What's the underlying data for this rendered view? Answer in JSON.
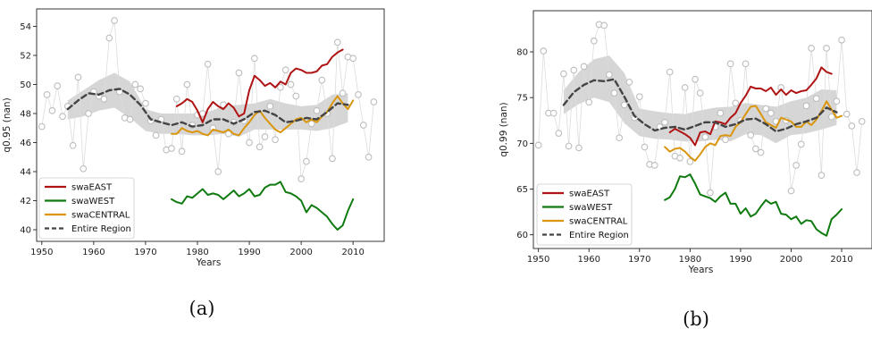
{
  "captions": [
    "(a)",
    "(b)"
  ],
  "chart_data": [
    {
      "type": "line",
      "xlabel": "Years",
      "ylabel": "q0.95 (nan)",
      "xlim": [
        1949,
        2016
      ],
      "ylim": [
        39.2,
        55.2
      ],
      "xticks": [
        1950,
        1960,
        1970,
        1980,
        1990,
        2000,
        2010
      ],
      "yticks": [
        40,
        42,
        44,
        46,
        48,
        50,
        52,
        54
      ],
      "grid": false,
      "legend_position": "lower-left",
      "series": [
        {
          "name": "swaEAST",
          "color": "#b01313",
          "style": "solid",
          "x": [
            1976,
            1977,
            1978,
            1979,
            1980,
            1981,
            1982,
            1983,
            1984,
            1985,
            1986,
            1987,
            1988,
            1989,
            1990,
            1991,
            1992,
            1993,
            1994,
            1995,
            1996,
            1997,
            1998,
            1999,
            2000,
            2001,
            2002,
            2003,
            2004,
            2005,
            2006,
            2007,
            2008
          ],
          "y": [
            48.5,
            48.7,
            49.0,
            48.8,
            48.2,
            47.4,
            48.3,
            48.8,
            48.5,
            48.3,
            48.7,
            48.4,
            47.8,
            48.0,
            49.6,
            50.6,
            50.3,
            49.9,
            50.1,
            49.8,
            50.2,
            50.0,
            50.8,
            51.1,
            51.0,
            50.8,
            50.8,
            50.9,
            51.3,
            51.4,
            51.9,
            52.2,
            52.4
          ]
        },
        {
          "name": "swaWEST",
          "color": "#0f7a0f",
          "style": "solid",
          "x": [
            1975,
            1976,
            1977,
            1978,
            1979,
            1980,
            1981,
            1982,
            1983,
            1984,
            1985,
            1986,
            1987,
            1988,
            1989,
            1990,
            1991,
            1992,
            1993,
            1994,
            1995,
            1996,
            1997,
            1998,
            1999,
            2000,
            2001,
            2002,
            2003,
            2004,
            2005,
            2006,
            2007,
            2008,
            2009,
            2010
          ],
          "y": [
            42.1,
            41.9,
            41.8,
            42.3,
            42.2,
            42.5,
            42.8,
            42.4,
            42.5,
            42.4,
            42.1,
            42.4,
            42.7,
            42.3,
            42.5,
            42.8,
            42.3,
            42.4,
            42.9,
            43.1,
            43.1,
            43.3,
            42.6,
            42.5,
            42.3,
            42.0,
            41.2,
            41.7,
            41.5,
            41.2,
            40.9,
            40.4,
            40.0,
            40.3,
            41.3,
            42.1
          ]
        },
        {
          "name": "swaCENTRAL",
          "color": "#d9960e",
          "style": "solid",
          "x": [
            1975,
            1976,
            1977,
            1978,
            1979,
            1980,
            1981,
            1982,
            1983,
            1984,
            1985,
            1986,
            1987,
            1988,
            1989,
            1990,
            1991,
            1992,
            1993,
            1994,
            1995,
            1996,
            1997,
            1998,
            1999,
            2000,
            2001,
            2002,
            2003,
            2004,
            2005,
            2006,
            2007,
            2008,
            2009,
            2010
          ],
          "y": [
            46.6,
            46.6,
            47.0,
            46.8,
            46.7,
            46.8,
            46.6,
            46.5,
            46.9,
            46.8,
            46.7,
            46.9,
            46.6,
            46.5,
            47.0,
            47.4,
            47.9,
            48.2,
            47.7,
            47.3,
            46.9,
            46.7,
            47.0,
            47.3,
            47.6,
            47.7,
            47.4,
            47.6,
            47.4,
            47.8,
            48.1,
            48.7,
            49.2,
            48.7,
            48.3,
            48.9
          ]
        },
        {
          "name": "Entire Region",
          "color": "#444444",
          "style": "dashed",
          "x": [
            1955,
            1957,
            1959,
            1961,
            1963,
            1965,
            1967,
            1969,
            1971,
            1973,
            1975,
            1977,
            1979,
            1981,
            1983,
            1985,
            1987,
            1989,
            1991,
            1993,
            1995,
            1997,
            1999,
            2001,
            2003,
            2005,
            2007,
            2009
          ],
          "y": [
            48.3,
            48.9,
            49.4,
            49.3,
            49.6,
            49.7,
            49.3,
            48.6,
            47.6,
            47.4,
            47.2,
            47.4,
            47.1,
            47.2,
            47.6,
            47.6,
            47.3,
            47.6,
            48.1,
            48.2,
            47.9,
            47.4,
            47.5,
            47.7,
            47.6,
            48.1,
            48.7,
            48.6
          ]
        }
      ],
      "uncertainty_band": {
        "color": "#cfcfcf",
        "x": [
          1955,
          1958,
          1961,
          1964,
          1967,
          1970,
          1973,
          1976,
          1979,
          1982,
          1985,
          1988,
          1991,
          1994,
          1997,
          2000,
          2003,
          2006,
          2009
        ],
        "lower": [
          47.6,
          47.8,
          48.2,
          48.4,
          47.7,
          46.8,
          46.6,
          46.6,
          46.5,
          46.5,
          46.6,
          46.4,
          46.9,
          46.9,
          46.9,
          46.9,
          46.8,
          47.0,
          47.4
        ],
        "upper": [
          48.9,
          49.6,
          50.3,
          50.8,
          50.2,
          48.3,
          48.0,
          48.0,
          48.0,
          48.1,
          48.5,
          48.6,
          48.7,
          49.0,
          48.7,
          48.5,
          48.6,
          49.3,
          49.4
        ]
      },
      "observations": {
        "color": "#bdbdbd",
        "x": [
          1950,
          1951,
          1952,
          1953,
          1954,
          1955,
          1956,
          1957,
          1958,
          1959,
          1960,
          1961,
          1962,
          1963,
          1964,
          1965,
          1966,
          1967,
          1968,
          1969,
          1970,
          1971,
          1972,
          1973,
          1974,
          1975,
          1976,
          1977,
          1978,
          1979,
          1980,
          1981,
          1982,
          1983,
          1984,
          1985,
          1986,
          1987,
          1988,
          1989,
          1990,
          1991,
          1992,
          1993,
          1994,
          1995,
          1996,
          1997,
          1998,
          1999,
          2000,
          2001,
          2002,
          2003,
          2004,
          2005,
          2006,
          2007,
          2008,
          2009,
          2010,
          2011,
          2012,
          2013,
          2014
        ],
        "y": [
          47.1,
          49.3,
          48.2,
          49.9,
          47.8,
          48.5,
          45.8,
          50.5,
          44.2,
          48.0,
          49.5,
          49.2,
          49.0,
          53.2,
          54.4,
          49.5,
          47.7,
          47.6,
          50.0,
          49.7,
          48.7,
          47.5,
          46.5,
          47.6,
          45.5,
          45.6,
          49.0,
          45.4,
          50.0,
          47.2,
          47.9,
          48.0,
          51.4,
          47.0,
          44.0,
          48.6,
          46.6,
          47.4,
          50.8,
          47.5,
          46.0,
          51.8,
          45.7,
          46.4,
          48.5,
          46.2,
          49.8,
          51.0,
          50.0,
          49.2,
          43.5,
          44.7,
          47.3,
          48.2,
          50.3,
          48.0,
          44.9,
          52.9,
          49.4,
          51.9,
          51.8,
          49.3,
          47.2,
          45.0,
          48.8
        ]
      }
    },
    {
      "type": "line",
      "xlabel": "Years",
      "ylabel": "q0.99 (nan)",
      "xlim": [
        1949,
        2016
      ],
      "ylim": [
        58.5,
        84.5
      ],
      "xticks": [
        1950,
        1960,
        1970,
        1980,
        1990,
        2000,
        2010
      ],
      "yticks": [
        60,
        65,
        70,
        75,
        80
      ],
      "grid": false,
      "legend_position": "lower-left",
      "series": [
        {
          "name": "swaEAST",
          "color": "#b01313",
          "style": "solid",
          "x": [
            1976,
            1977,
            1978,
            1979,
            1980,
            1981,
            1982,
            1983,
            1984,
            1985,
            1986,
            1987,
            1988,
            1989,
            1990,
            1991,
            1992,
            1993,
            1994,
            1995,
            1996,
            1997,
            1998,
            1999,
            2000,
            2001,
            2002,
            2003,
            2004,
            2005,
            2006,
            2007,
            2008
          ],
          "y": [
            71.2,
            71.6,
            71.3,
            71.0,
            70.6,
            69.8,
            71.2,
            71.3,
            71.0,
            72.4,
            72.3,
            72.1,
            72.8,
            73.3,
            74.4,
            75.2,
            76.2,
            76.0,
            76.0,
            75.7,
            76.1,
            75.3,
            75.9,
            75.3,
            75.8,
            75.5,
            75.7,
            75.8,
            76.4,
            77.1,
            78.3,
            77.8,
            77.6
          ]
        },
        {
          "name": "swaWEST",
          "color": "#0f7a0f",
          "style": "solid",
          "x": [
            1975,
            1976,
            1977,
            1978,
            1979,
            1980,
            1981,
            1982,
            1983,
            1984,
            1985,
            1986,
            1987,
            1988,
            1989,
            1990,
            1991,
            1992,
            1993,
            1994,
            1995,
            1996,
            1997,
            1998,
            1999,
            2000,
            2001,
            2002,
            2003,
            2004,
            2005,
            2006,
            2007,
            2008,
            2009,
            2010
          ],
          "y": [
            63.8,
            64.1,
            65.0,
            66.4,
            66.3,
            66.6,
            65.6,
            64.4,
            64.2,
            64.0,
            63.6,
            64.2,
            64.6,
            63.4,
            63.4,
            62.3,
            62.9,
            62.0,
            62.3,
            63.1,
            63.8,
            63.4,
            63.6,
            62.3,
            62.2,
            61.7,
            62.0,
            61.2,
            61.6,
            61.5,
            60.6,
            60.2,
            59.9,
            61.7,
            62.2,
            62.8
          ]
        },
        {
          "name": "swaCENTRAL",
          "color": "#d9960e",
          "style": "solid",
          "x": [
            1975,
            1976,
            1977,
            1978,
            1979,
            1980,
            1981,
            1982,
            1983,
            1984,
            1985,
            1986,
            1987,
            1988,
            1989,
            1990,
            1991,
            1992,
            1993,
            1994,
            1995,
            1996,
            1997,
            1998,
            1999,
            2000,
            2001,
            2002,
            2003,
            2004,
            2005,
            2006,
            2007,
            2008,
            2009,
            2010
          ],
          "y": [
            69.6,
            69.1,
            69.4,
            69.5,
            69.1,
            68.5,
            68.1,
            68.8,
            69.6,
            70.0,
            69.8,
            70.8,
            70.9,
            70.8,
            71.8,
            72.3,
            73.2,
            74.0,
            74.1,
            73.2,
            72.3,
            72.0,
            71.7,
            72.8,
            72.6,
            72.4,
            71.8,
            71.8,
            72.4,
            72.0,
            72.6,
            73.5,
            74.6,
            73.7,
            72.8,
            73.0
          ]
        },
        {
          "name": "Entire Region",
          "color": "#444444",
          "style": "dashed",
          "x": [
            1955,
            1957,
            1959,
            1961,
            1963,
            1965,
            1967,
            1969,
            1971,
            1973,
            1975,
            1977,
            1979,
            1981,
            1983,
            1985,
            1987,
            1989,
            1991,
            1993,
            1995,
            1997,
            1999,
            2001,
            2003,
            2005,
            2007,
            2009
          ],
          "y": [
            74.2,
            75.6,
            76.4,
            76.9,
            76.8,
            77.0,
            75.1,
            73.0,
            72.1,
            71.4,
            71.7,
            71.8,
            71.5,
            71.9,
            72.3,
            72.3,
            71.8,
            72.1,
            72.6,
            72.7,
            72.1,
            71.3,
            71.6,
            72.1,
            72.4,
            72.8,
            73.9,
            73.4
          ]
        }
      ],
      "uncertainty_band": {
        "color": "#cfcfcf",
        "x": [
          1955,
          1958,
          1961,
          1964,
          1967,
          1970,
          1973,
          1976,
          1979,
          1982,
          1985,
          1988,
          1991,
          1994,
          1997,
          2000,
          2003,
          2006,
          2009
        ],
        "lower": [
          73.2,
          74.3,
          75.0,
          74.5,
          72.2,
          70.8,
          70.5,
          70.4,
          70.2,
          70.2,
          70.4,
          70.2,
          71.0,
          70.9,
          70.0,
          70.9,
          71.1,
          71.5,
          72.0
        ],
        "upper": [
          75.8,
          77.8,
          79.2,
          79.6,
          77.7,
          73.8,
          73.5,
          73.3,
          73.2,
          73.6,
          73.9,
          74.0,
          74.4,
          74.2,
          74.0,
          74.6,
          75.0,
          75.9,
          75.8
        ]
      },
      "observations": {
        "color": "#bdbdbd",
        "x": [
          1950,
          1951,
          1952,
          1953,
          1954,
          1955,
          1956,
          1957,
          1958,
          1959,
          1960,
          1961,
          1962,
          1963,
          1964,
          1965,
          1966,
          1967,
          1968,
          1969,
          1970,
          1971,
          1972,
          1973,
          1974,
          1975,
          1976,
          1977,
          1978,
          1979,
          1980,
          1981,
          1982,
          1983,
          1984,
          1985,
          1986,
          1987,
          1988,
          1989,
          1990,
          1991,
          1992,
          1993,
          1994,
          1995,
          1996,
          1997,
          1998,
          1999,
          2000,
          2001,
          2002,
          2003,
          2004,
          2005,
          2006,
          2007,
          2008,
          2009,
          2010,
          2011,
          2012,
          2013,
          2014
        ],
        "y": [
          69.8,
          80.1,
          73.3,
          73.3,
          71.1,
          77.6,
          69.7,
          78.0,
          69.5,
          78.4,
          74.5,
          81.2,
          83.0,
          82.9,
          77.5,
          75.5,
          70.6,
          74.2,
          76.7,
          72.8,
          75.1,
          69.6,
          67.7,
          67.6,
          71.8,
          72.3,
          77.8,
          68.6,
          68.4,
          76.1,
          68.0,
          77.0,
          75.5,
          70.7,
          64.6,
          71.8,
          73.3,
          70.4,
          78.7,
          74.4,
          72.5,
          78.7,
          70.9,
          69.4,
          69.0,
          73.8,
          73.3,
          72.4,
          76.1,
          72.5,
          64.8,
          67.6,
          69.9,
          74.1,
          80.4,
          74.9,
          66.5,
          80.4,
          72.9,
          74.6,
          81.3,
          73.2,
          71.9,
          66.8,
          72.4
        ]
      }
    }
  ]
}
